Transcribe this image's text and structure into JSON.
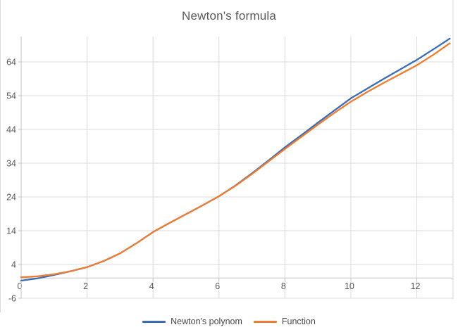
{
  "chart": {
    "title": "Newton's formula",
    "colors": {
      "series_blue": "#3C6CB5",
      "series_orange": "#ED7D31",
      "gridline": "#DBDBDB",
      "axis_line": "#C6C6C6",
      "frame_border": "#D9D9D9",
      "title_text": "#595959",
      "tick_text": "#595959",
      "legend_text": "#4A4A4A",
      "background": "#FFFFFF"
    },
    "legend_labels": [
      "Newton's polynom",
      "Function"
    ]
  },
  "chart_data": {
    "type": "line",
    "title": "Newton's formula",
    "xlabel": "",
    "ylabel": "",
    "xlim": [
      0,
      13.1
    ],
    "ylim": [
      -6,
      71.5
    ],
    "x_ticks": [
      0,
      2,
      4,
      6,
      8,
      10,
      12
    ],
    "y_ticks": [
      -6,
      4,
      14,
      24,
      34,
      44,
      54,
      64
    ],
    "grid": true,
    "legend_position": "bottom",
    "series": [
      {
        "name": "Newton's polynom",
        "color": "#3C6CB5",
        "points": [
          [
            0,
            -0.8
          ],
          [
            0.5,
            -0.1
          ],
          [
            1,
            0.9
          ],
          [
            1.5,
            2.0
          ],
          [
            2,
            3.2
          ],
          [
            2.5,
            5.0
          ],
          [
            3,
            7.3
          ],
          [
            3.5,
            10.3
          ],
          [
            4,
            13.6
          ],
          [
            4.5,
            16.3
          ],
          [
            5,
            18.9
          ],
          [
            5.5,
            21.5
          ],
          [
            6,
            24.2
          ],
          [
            6.5,
            27.4
          ],
          [
            7,
            31.0
          ],
          [
            7.5,
            34.8
          ],
          [
            8,
            38.7
          ],
          [
            8.5,
            42.3
          ],
          [
            9,
            46.0
          ],
          [
            9.5,
            49.6
          ],
          [
            10,
            53.2
          ],
          [
            10.5,
            56.1
          ],
          [
            11,
            59.0
          ],
          [
            11.5,
            61.8
          ],
          [
            12,
            64.6
          ],
          [
            12.5,
            67.7
          ],
          [
            13,
            70.9
          ]
        ]
      },
      {
        "name": "Function",
        "color": "#ED7D31",
        "points": [
          [
            0,
            0.2
          ],
          [
            0.5,
            0.5
          ],
          [
            1,
            1.1
          ],
          [
            1.5,
            2.0
          ],
          [
            2,
            3.2
          ],
          [
            2.5,
            5.0
          ],
          [
            3,
            7.3
          ],
          [
            3.5,
            10.3
          ],
          [
            4,
            13.6
          ],
          [
            4.5,
            16.3
          ],
          [
            5,
            18.9
          ],
          [
            5.5,
            21.5
          ],
          [
            6,
            24.2
          ],
          [
            6.5,
            27.3
          ],
          [
            7,
            30.8
          ],
          [
            7.5,
            34.5
          ],
          [
            8,
            38.2
          ],
          [
            8.5,
            41.8
          ],
          [
            9,
            45.4
          ],
          [
            9.5,
            48.9
          ],
          [
            10,
            52.2
          ],
          [
            10.5,
            55.1
          ],
          [
            11,
            57.8
          ],
          [
            11.5,
            60.4
          ],
          [
            12,
            63.0
          ],
          [
            12.5,
            66.1
          ],
          [
            13,
            69.5
          ]
        ]
      }
    ]
  }
}
